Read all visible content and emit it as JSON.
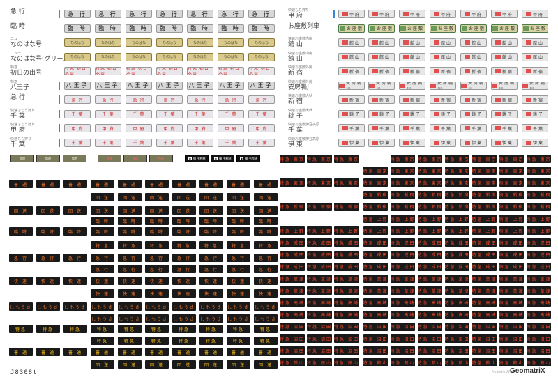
{
  "left_rows": [
    {
      "sub": "",
      "main": "急 行",
      "bar": "#2bb34a",
      "plate": "急 行",
      "style": "gray"
    },
    {
      "sub": "",
      "main": "臨 時",
      "bar": "",
      "plate": "臨 時",
      "style": "gray"
    },
    {
      "sub": "ニュー",
      "main": "なのはな号",
      "bar": "",
      "plate": "なのはな",
      "style": "gold"
    },
    {
      "sub": "ニュー",
      "main": "なのはな号(グリーン車)",
      "bar": "",
      "plate": "なのはな",
      "style": "gold"
    },
    {
      "sub": "特急",
      "main": "初日の出号",
      "bar": "",
      "plate": "特急 初日の出",
      "style": "red"
    },
    {
      "sub": "特急",
      "main": "八王子",
      "bar": "#2bb34a",
      "plate": "八王子",
      "style": "gray"
    },
    {
      "sub": "",
      "main": "急 行",
      "bar": "#3a86d6",
      "plate": "急 行",
      "style": "red"
    },
    {
      "sub": "快速ぶどう狩り",
      "main": "千 葉",
      "bar": "#3a86d6",
      "plate": "千 葉",
      "style": "red"
    },
    {
      "sub": "快速ぶどう狩り",
      "main": "甲 府",
      "bar": "#3a86d6",
      "plate": "甲 府",
      "style": "red"
    },
    {
      "sub": "快速もも狩り",
      "main": "千 葉",
      "bar": "#3a86d6",
      "plate": "千 葉",
      "style": "red"
    }
  ],
  "right_rows": [
    {
      "sub": "快速もも狩り",
      "main": "甲 府",
      "bar": "#3a86d6",
      "plate": "甲府",
      "style": "plain"
    },
    {
      "sub": "",
      "main": "お座敷列車",
      "bar": "",
      "plate": "お座敷",
      "style": "grn"
    },
    {
      "sub": "快速お座敷内房",
      "main": "館 山",
      "bar": "",
      "plate": "館山",
      "style": "plain"
    },
    {
      "sub": "快速お座敷内房",
      "main": "館 山",
      "bar": "",
      "plate": "館山",
      "style": "plain"
    },
    {
      "sub": "快速お座敷外房",
      "main": "新 宿",
      "bar": "",
      "plate": "新宿",
      "style": "plain"
    },
    {
      "sub": "快速お座敷外房",
      "main": "安房鴨川",
      "bar": "",
      "plate": "安房鴨川",
      "style": "plain"
    },
    {
      "sub": "快速お座敷犬吠",
      "main": "新 宿",
      "bar": "",
      "plate": "新宿",
      "style": "plain"
    },
    {
      "sub": "快速お座敷犬吠",
      "main": "銚 子",
      "bar": "",
      "plate": "銚子",
      "style": "plain"
    },
    {
      "sub": "快速お座敷伊豆高原",
      "main": "千 葉",
      "bar": "",
      "plate": "千葉",
      "style": "plain"
    },
    {
      "sub": "快速お座敷伊豆高原",
      "main": "伊 東",
      "bar": "",
      "plate": "伊東",
      "style": "plain"
    }
  ],
  "special_row": {
    "olive": [
      "臨時",
      "臨時",
      "臨時"
    ],
    "red_olive": [
      "快速",
      "快速",
      "快速"
    ],
    "white_black": [
      "御 予約制",
      "御 予約制",
      "御 予約制"
    ]
  },
  "dark_left_labels": [
    "普 通",
    "回 送",
    "回 送",
    "臨 時",
    "臨 時",
    "特 急",
    "急 行",
    "急 行",
    "快 速",
    "快 速",
    "しもうさ",
    "しもうさ",
    "特急",
    "特急"
  ],
  "dark_right_labels": [
    "特急 東京",
    "特急 新宿",
    "特急 上野",
    "特急 成田",
    "特急 草津",
    "特急 高崎",
    "特急 沼田",
    "特急 館山"
  ],
  "footer": {
    "code": "J8308t",
    "printed": "Printed in JAPAN",
    "brand": "GeomatriX"
  }
}
